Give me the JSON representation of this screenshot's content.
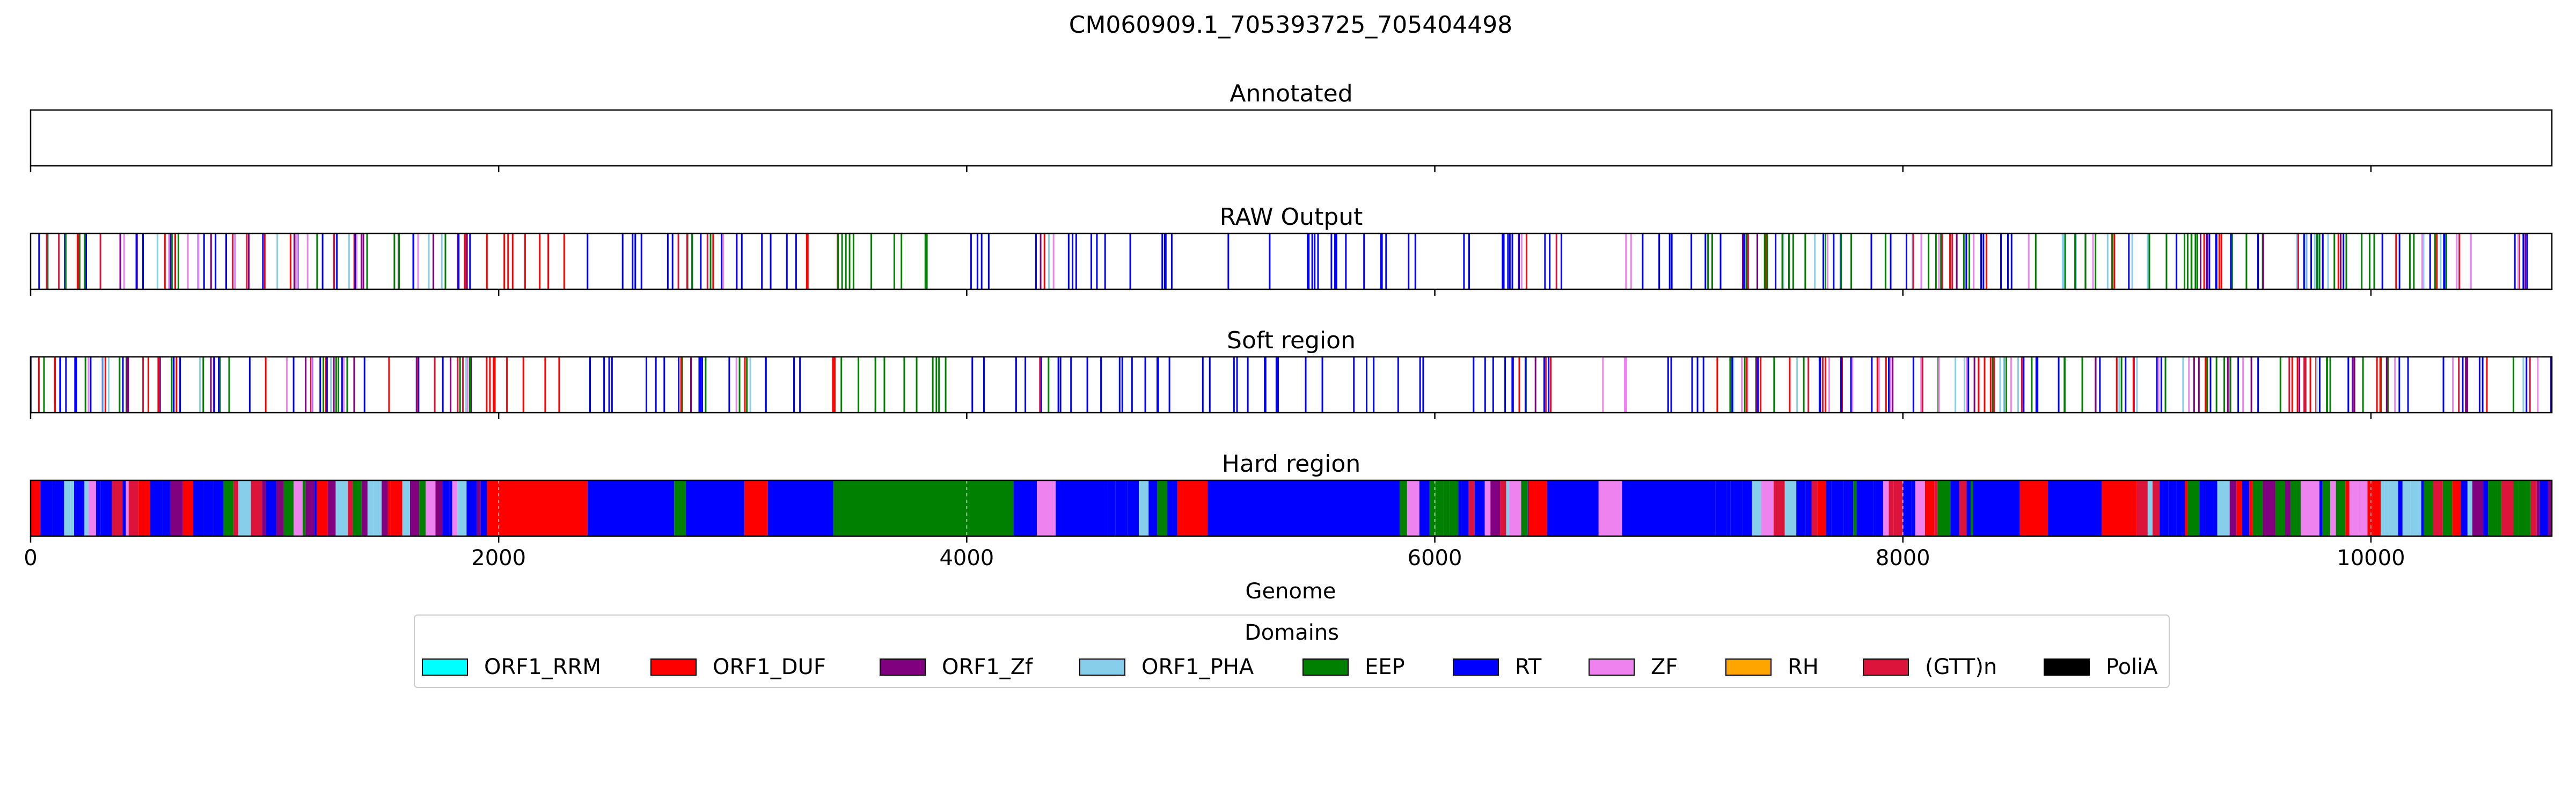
{
  "figure": {
    "title": "CM060909.1_705393725_705404498"
  },
  "legend": {
    "title": "Domains",
    "placement": "bottom-center",
    "items": [
      {
        "label": "ORF1_RRM",
        "color": "#00FFFF"
      },
      {
        "label": "ORF1_DUF",
        "color": "#FF0000"
      },
      {
        "label": "ORF1_Zf",
        "color": "#800080"
      },
      {
        "label": "ORF1_PHA",
        "color": "#87CEEB"
      },
      {
        "label": "EEP",
        "color": "#008000"
      },
      {
        "label": "RT",
        "color": "#0000FF"
      },
      {
        "label": "ZF",
        "color": "#EE82EE"
      },
      {
        "label": "RH",
        "color": "#FFA500"
      },
      {
        "label": "(GTT)n",
        "color": "#DC143C"
      },
      {
        "label": "PoliA",
        "color": "#000000"
      }
    ]
  },
  "chart_data": {
    "type": "heatmap",
    "title": "CM060909.1_705393725_705404498",
    "xlabel": "Genome",
    "xlim": [
      0,
      10773
    ],
    "xticks": [
      0,
      2000,
      4000,
      6000,
      8000,
      10000
    ],
    "grid": "off",
    "panels": [
      {
        "title": "Annotated",
        "style": "lines",
        "segments": []
      },
      {
        "title": "RAW Output",
        "style": "lines",
        "segments": [
          [
            0,
            1000,
            "mixed"
          ],
          [
            1000,
            1500,
            "mixed"
          ],
          [
            1500,
            1900,
            "mixed"
          ],
          [
            1900,
            2350,
            "ORF1_DUF"
          ],
          [
            2350,
            2750,
            "RT"
          ],
          [
            2750,
            3100,
            "mixed"
          ],
          [
            3100,
            3300,
            "RT"
          ],
          [
            3300,
            3450,
            "ORF1_DUF"
          ],
          [
            3450,
            4000,
            "EEP"
          ],
          [
            4000,
            4300,
            "RT"
          ],
          [
            4300,
            4400,
            "mixed"
          ],
          [
            4400,
            5000,
            "RT"
          ],
          [
            5000,
            5900,
            "RT"
          ],
          [
            5900,
            6350,
            "RT"
          ],
          [
            6350,
            6550,
            "mixed"
          ],
          [
            6700,
            6850,
            "ZF"
          ],
          [
            6850,
            7150,
            "RT"
          ],
          [
            7150,
            8900,
            "mixed"
          ],
          [
            8900,
            9300,
            "mixed"
          ],
          [
            9300,
            10773,
            "mixed"
          ]
        ]
      },
      {
        "title": "Soft region",
        "style": "lines",
        "segments": [
          [
            0,
            1000,
            "mixed"
          ],
          [
            1000,
            1500,
            "mixed"
          ],
          [
            1500,
            1900,
            "mixed"
          ],
          [
            1900,
            2350,
            "ORF1_DUF"
          ],
          [
            2350,
            2750,
            "RT"
          ],
          [
            2750,
            3100,
            "mixed"
          ],
          [
            3100,
            3300,
            "RT"
          ],
          [
            3300,
            3450,
            "ORF1_DUF"
          ],
          [
            3450,
            4000,
            "EEP"
          ],
          [
            4000,
            4300,
            "RT"
          ],
          [
            4300,
            4400,
            "mixed"
          ],
          [
            4400,
            5000,
            "RT"
          ],
          [
            5000,
            5900,
            "RT"
          ],
          [
            5900,
            6350,
            "RT"
          ],
          [
            6350,
            6550,
            "mixed"
          ],
          [
            6700,
            6850,
            "ZF"
          ],
          [
            6850,
            7150,
            "RT"
          ],
          [
            7150,
            8900,
            "mixed"
          ],
          [
            8900,
            9300,
            "mixed"
          ],
          [
            9300,
            10773,
            "mixed"
          ]
        ]
      },
      {
        "title": "Hard region",
        "style": "filled",
        "segments": [
          [
            0,
            1500,
            "mixed"
          ],
          [
            1500,
            1950,
            "mixed"
          ],
          [
            1950,
            2380,
            "ORF1_DUF"
          ],
          [
            2380,
            2750,
            "RT"
          ],
          [
            2750,
            2800,
            "EEP"
          ],
          [
            2800,
            3050,
            "RT"
          ],
          [
            3050,
            3150,
            "ORF1_DUF"
          ],
          [
            3150,
            3430,
            "RT"
          ],
          [
            3430,
            4200,
            "EEP"
          ],
          [
            4200,
            4300,
            "RT"
          ],
          [
            4300,
            4380,
            "ZF"
          ],
          [
            4380,
            4600,
            "RT"
          ],
          [
            4600,
            4900,
            "mixed"
          ],
          [
            4900,
            5030,
            "ORF1_DUF"
          ],
          [
            5030,
            5850,
            "RT"
          ],
          [
            5850,
            6400,
            "mixed"
          ],
          [
            6400,
            6480,
            "ORF1_DUF"
          ],
          [
            6480,
            6700,
            "RT"
          ],
          [
            6700,
            6800,
            "ZF"
          ],
          [
            6800,
            7200,
            "RT"
          ],
          [
            7200,
            8000,
            "mixed"
          ],
          [
            8000,
            8300,
            "mixed"
          ],
          [
            8300,
            8500,
            "RT"
          ],
          [
            8500,
            8620,
            "ORF1_DUF"
          ],
          [
            8620,
            8850,
            "RT"
          ],
          [
            8850,
            9000,
            "ORF1_DUF"
          ],
          [
            9000,
            9700,
            "mixed"
          ],
          [
            9700,
            9780,
            "ZF"
          ],
          [
            9780,
            10773,
            "mixed"
          ]
        ]
      }
    ]
  }
}
